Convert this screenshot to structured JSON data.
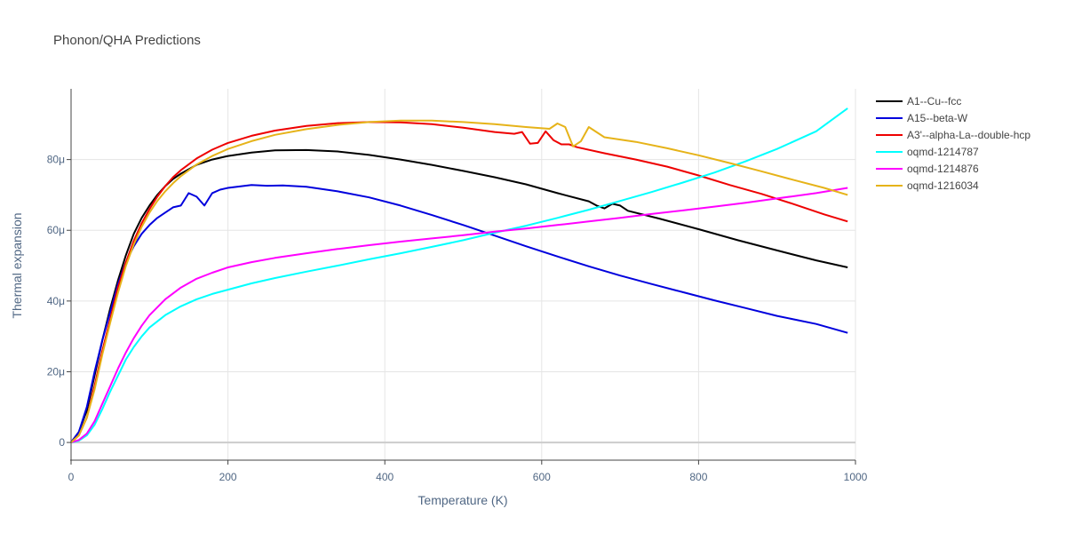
{
  "chart_data": {
    "type": "line",
    "title": "Phonon/QHA Predictions",
    "xlabel": "Temperature (K)",
    "ylabel": "Thermal expansion",
    "xlim": [
      0,
      1000
    ],
    "ylim": [
      -5,
      100
    ],
    "x_ticks": [
      {
        "value": 0,
        "label": "0"
      },
      {
        "value": 200,
        "label": "200"
      },
      {
        "value": 400,
        "label": "400"
      },
      {
        "value": 600,
        "label": "600"
      },
      {
        "value": 800,
        "label": "800"
      },
      {
        "value": 1000,
        "label": "1000"
      }
    ],
    "y_ticks": [
      {
        "value": 0,
        "label": "0"
      },
      {
        "value": 20,
        "label": "20μ"
      },
      {
        "value": 40,
        "label": "40μ"
      },
      {
        "value": 60,
        "label": "60μ"
      },
      {
        "value": 80,
        "label": "80μ"
      }
    ],
    "y_unit_note": "μ",
    "grid": true,
    "legend_position": "right",
    "series": [
      {
        "name": "A1--Cu--fcc",
        "color": "#000000",
        "points": [
          [
            0,
            0
          ],
          [
            10,
            3
          ],
          [
            20,
            9
          ],
          [
            30,
            19
          ],
          [
            40,
            29
          ],
          [
            50,
            38
          ],
          [
            60,
            46
          ],
          [
            70,
            53
          ],
          [
            80,
            59
          ],
          [
            90,
            63.5
          ],
          [
            100,
            67
          ],
          [
            110,
            70
          ],
          [
            120,
            72.5
          ],
          [
            130,
            74.5
          ],
          [
            140,
            76
          ],
          [
            160,
            78.5
          ],
          [
            180,
            80
          ],
          [
            200,
            81
          ],
          [
            230,
            82
          ],
          [
            260,
            82.6
          ],
          [
            300,
            82.7
          ],
          [
            340,
            82.3
          ],
          [
            380,
            81.3
          ],
          [
            420,
            80
          ],
          [
            460,
            78.5
          ],
          [
            500,
            76.8
          ],
          [
            540,
            75
          ],
          [
            580,
            73
          ],
          [
            620,
            70.5
          ],
          [
            660,
            68.2
          ],
          [
            670,
            67
          ],
          [
            680,
            66.2
          ],
          [
            690,
            67.5
          ],
          [
            700,
            67
          ],
          [
            710,
            65.5
          ],
          [
            750,
            63.3
          ],
          [
            800,
            60.3
          ],
          [
            850,
            57.2
          ],
          [
            900,
            54.3
          ],
          [
            950,
            51.5
          ],
          [
            990,
            49.5
          ]
        ]
      },
      {
        "name": "A15--beta-W",
        "color": "#0000dd",
        "points": [
          [
            0,
            0
          ],
          [
            10,
            3
          ],
          [
            20,
            10
          ],
          [
            30,
            20
          ],
          [
            40,
            29
          ],
          [
            50,
            37
          ],
          [
            60,
            45
          ],
          [
            70,
            51
          ],
          [
            80,
            55.5
          ],
          [
            90,
            59
          ],
          [
            100,
            61.5
          ],
          [
            110,
            63.5
          ],
          [
            120,
            65
          ],
          [
            130,
            66.5
          ],
          [
            140,
            67
          ],
          [
            150,
            70.5
          ],
          [
            160,
            69.5
          ],
          [
            170,
            67
          ],
          [
            180,
            70.5
          ],
          [
            190,
            71.5
          ],
          [
            200,
            72
          ],
          [
            230,
            72.8
          ],
          [
            250,
            72.6
          ],
          [
            270,
            72.7
          ],
          [
            300,
            72.3
          ],
          [
            340,
            71
          ],
          [
            380,
            69.3
          ],
          [
            420,
            67
          ],
          [
            460,
            64.3
          ],
          [
            500,
            61.5
          ],
          [
            540,
            58.5
          ],
          [
            580,
            55.5
          ],
          [
            620,
            52.6
          ],
          [
            660,
            49.8
          ],
          [
            700,
            47.2
          ],
          [
            740,
            44.8
          ],
          [
            780,
            42.5
          ],
          [
            820,
            40.2
          ],
          [
            860,
            38
          ],
          [
            900,
            35.8
          ],
          [
            950,
            33.5
          ],
          [
            990,
            31
          ]
        ]
      },
      {
        "name": "A3'--alpha-La--double-hcp",
        "color": "#ee0000",
        "points": [
          [
            0,
            0
          ],
          [
            10,
            2
          ],
          [
            20,
            7
          ],
          [
            30,
            16
          ],
          [
            40,
            26
          ],
          [
            50,
            35
          ],
          [
            60,
            44
          ],
          [
            70,
            51
          ],
          [
            80,
            57
          ],
          [
            90,
            62
          ],
          [
            100,
            66
          ],
          [
            110,
            69.5
          ],
          [
            120,
            72.5
          ],
          [
            130,
            75
          ],
          [
            140,
            77
          ],
          [
            160,
            80.3
          ],
          [
            180,
            82.8
          ],
          [
            200,
            84.7
          ],
          [
            230,
            86.7
          ],
          [
            260,
            88.2
          ],
          [
            300,
            89.5
          ],
          [
            340,
            90.3
          ],
          [
            380,
            90.6
          ],
          [
            420,
            90.5
          ],
          [
            460,
            90
          ],
          [
            500,
            89
          ],
          [
            540,
            87.8
          ],
          [
            565,
            87.3
          ],
          [
            575,
            87.8
          ],
          [
            585,
            84.5
          ],
          [
            595,
            84.7
          ],
          [
            605,
            88
          ],
          [
            615,
            85.5
          ],
          [
            625,
            84.3
          ],
          [
            635,
            84.3
          ],
          [
            645,
            83.5
          ],
          [
            680,
            81.8
          ],
          [
            720,
            80
          ],
          [
            760,
            78
          ],
          [
            800,
            75.5
          ],
          [
            840,
            72.8
          ],
          [
            880,
            70.3
          ],
          [
            920,
            67.5
          ],
          [
            960,
            64.5
          ],
          [
            990,
            62.5
          ]
        ]
      },
      {
        "name": "oqmd-1214787",
        "color": "#00ffff",
        "points": [
          [
            0,
            0
          ],
          [
            10,
            0.5
          ],
          [
            20,
            2
          ],
          [
            30,
            5
          ],
          [
            40,
            9.5
          ],
          [
            50,
            14.5
          ],
          [
            60,
            19
          ],
          [
            70,
            23.5
          ],
          [
            80,
            27
          ],
          [
            90,
            30
          ],
          [
            100,
            32.5
          ],
          [
            120,
            36
          ],
          [
            140,
            38.5
          ],
          [
            160,
            40.5
          ],
          [
            180,
            42
          ],
          [
            200,
            43.2
          ],
          [
            230,
            45
          ],
          [
            260,
            46.5
          ],
          [
            300,
            48.3
          ],
          [
            340,
            50
          ],
          [
            380,
            51.8
          ],
          [
            420,
            53.5
          ],
          [
            460,
            55.3
          ],
          [
            500,
            57.2
          ],
          [
            540,
            59.3
          ],
          [
            580,
            61.3
          ],
          [
            620,
            63.5
          ],
          [
            660,
            65.8
          ],
          [
            700,
            68.3
          ],
          [
            740,
            70.8
          ],
          [
            780,
            73.5
          ],
          [
            820,
            76.3
          ],
          [
            860,
            79.5
          ],
          [
            900,
            83
          ],
          [
            950,
            88
          ],
          [
            990,
            94.5
          ]
        ]
      },
      {
        "name": "oqmd-1214876",
        "color": "#ff00ff",
        "points": [
          [
            0,
            0
          ],
          [
            10,
            0.7
          ],
          [
            20,
            2.5
          ],
          [
            30,
            6
          ],
          [
            40,
            11
          ],
          [
            50,
            16
          ],
          [
            60,
            21
          ],
          [
            70,
            25.5
          ],
          [
            80,
            29.5
          ],
          [
            90,
            33
          ],
          [
            100,
            36
          ],
          [
            120,
            40.5
          ],
          [
            140,
            43.8
          ],
          [
            160,
            46.3
          ],
          [
            180,
            48
          ],
          [
            200,
            49.5
          ],
          [
            230,
            51
          ],
          [
            260,
            52.2
          ],
          [
            300,
            53.5
          ],
          [
            340,
            54.7
          ],
          [
            380,
            55.8
          ],
          [
            420,
            56.8
          ],
          [
            460,
            57.7
          ],
          [
            500,
            58.6
          ],
          [
            540,
            59.6
          ],
          [
            580,
            60.5
          ],
          [
            620,
            61.5
          ],
          [
            660,
            62.5
          ],
          [
            700,
            63.5
          ],
          [
            740,
            64.6
          ],
          [
            780,
            65.6
          ],
          [
            820,
            66.7
          ],
          [
            860,
            67.8
          ],
          [
            900,
            69
          ],
          [
            950,
            70.5
          ],
          [
            990,
            72
          ]
        ]
      },
      {
        "name": "oqmd-1216034",
        "color": "#e6b319",
        "points": [
          [
            0,
            0
          ],
          [
            10,
            2
          ],
          [
            20,
            7
          ],
          [
            30,
            15
          ],
          [
            40,
            25
          ],
          [
            50,
            34
          ],
          [
            60,
            42.5
          ],
          [
            70,
            50
          ],
          [
            80,
            56
          ],
          [
            90,
            61
          ],
          [
            100,
            65
          ],
          [
            110,
            68.3
          ],
          [
            120,
            71
          ],
          [
            130,
            73.3
          ],
          [
            140,
            75.3
          ],
          [
            160,
            78.6
          ],
          [
            180,
            81
          ],
          [
            200,
            83
          ],
          [
            230,
            85.2
          ],
          [
            260,
            87
          ],
          [
            300,
            88.6
          ],
          [
            340,
            89.8
          ],
          [
            380,
            90.6
          ],
          [
            420,
            91
          ],
          [
            460,
            91
          ],
          [
            500,
            90.6
          ],
          [
            540,
            90
          ],
          [
            580,
            89.2
          ],
          [
            610,
            88.7
          ],
          [
            620,
            90.2
          ],
          [
            630,
            89.2
          ],
          [
            640,
            83.7
          ],
          [
            650,
            85.2
          ],
          [
            660,
            89.2
          ],
          [
            680,
            86.3
          ],
          [
            720,
            85
          ],
          [
            760,
            83.2
          ],
          [
            800,
            81.2
          ],
          [
            840,
            79
          ],
          [
            880,
            76.7
          ],
          [
            920,
            74.3
          ],
          [
            960,
            72
          ],
          [
            990,
            70
          ]
        ]
      }
    ]
  }
}
